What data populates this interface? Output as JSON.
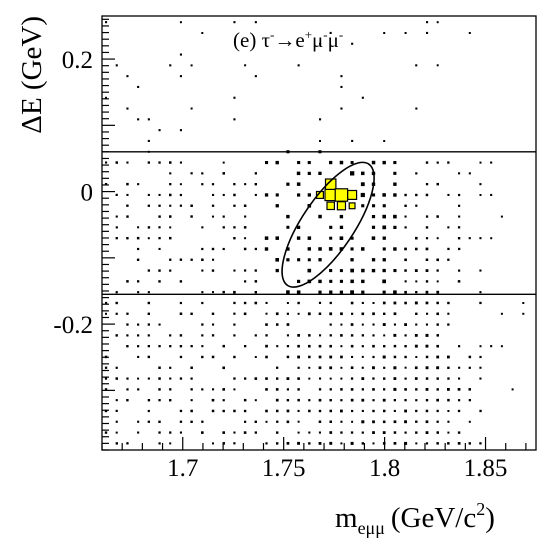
{
  "chart_data": {
    "type": "scatter",
    "style": "box-histogram (2D, box area proportional to entries)",
    "annotation": {
      "prefix": "(e) ",
      "tau": "τ",
      "tau_sup": "-",
      "arrow": "→",
      "e": "e",
      "e_sup": "+",
      "mu1": "μ",
      "mu1_sup": "-",
      "mu2": "μ",
      "mu2_sup": "-"
    },
    "xlabel": {
      "main": "m",
      "sub": "eμμ",
      "unit": "(GeV/c",
      "unit_sup": "2",
      "unit_close": ")"
    },
    "ylabel": "ΔE (GeV)",
    "xlim": [
      1.66,
      1.875
    ],
    "ylim": [
      -0.39,
      0.265
    ],
    "xticks": [
      {
        "v": 1.7,
        "label": "1.7"
      },
      {
        "v": 1.75,
        "label": "1.75"
      },
      {
        "v": 1.8,
        "label": "1.8"
      },
      {
        "v": 1.85,
        "label": "1.85"
      }
    ],
    "yticks": [
      {
        "v": 0.2,
        "label": "0.2"
      },
      {
        "v": 0,
        "label": "0"
      },
      {
        "v": -0.2,
        "label": "-0.2"
      }
    ],
    "signal_band": {
      "y_low": -0.155,
      "y_high": 0.06
    },
    "signal_ellipse": {
      "cx": 1.772,
      "cy": -0.05,
      "semi_major": 0.11,
      "semi_minor": 0.024,
      "tilt": "along increasing m and ΔE"
    },
    "signal_peak": {
      "x": 1.777,
      "y": 0.0
    },
    "grid": false,
    "legend": "none"
  }
}
